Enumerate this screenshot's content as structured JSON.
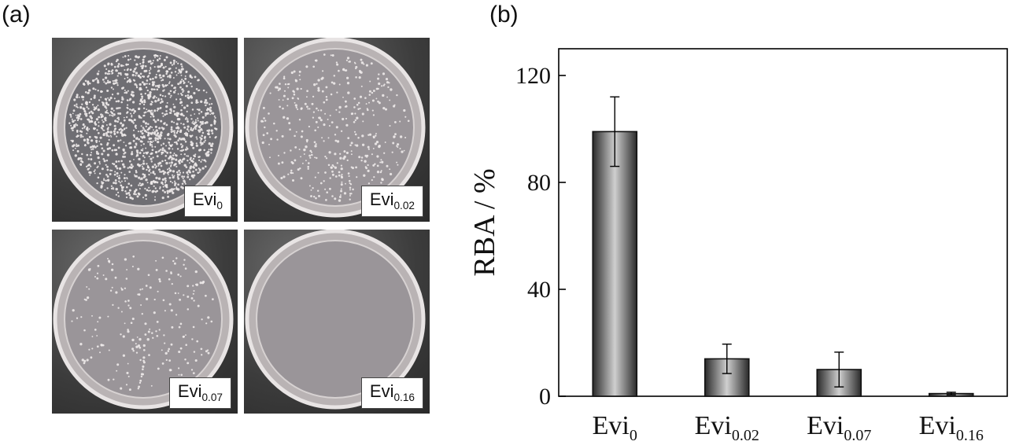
{
  "panels": {
    "a_label": "(a)",
    "b_label": "(b)"
  },
  "plates": [
    {
      "base": "Evi",
      "sub": "0",
      "density": "very-high"
    },
    {
      "base": "Evi",
      "sub": "0.02",
      "density": "medium"
    },
    {
      "base": "Evi",
      "sub": "0.07",
      "density": "low"
    },
    {
      "base": "Evi",
      "sub": "0.16",
      "density": "none"
    }
  ],
  "chart_data": {
    "type": "bar",
    "categories": [
      {
        "base": "Evi",
        "sub": "0"
      },
      {
        "base": "Evi",
        "sub": "0.02"
      },
      {
        "base": "Evi",
        "sub": "0.07"
      },
      {
        "base": "Evi",
        "sub": "0.16"
      }
    ],
    "values": [
      99,
      14,
      10,
      1
    ],
    "errors": [
      13,
      5.5,
      6.5,
      0.5
    ],
    "ylabel": "RBA / %",
    "ylim": [
      0,
      130
    ],
    "yticks": [
      0,
      40,
      80,
      120
    ],
    "grid": false,
    "bar_color": "#555555"
  }
}
